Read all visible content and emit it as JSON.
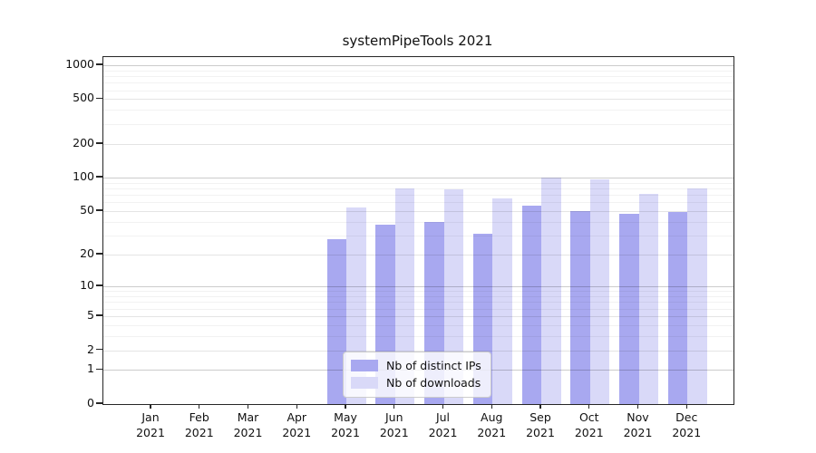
{
  "chart_data": {
    "type": "bar",
    "title": "systemPipeTools 2021",
    "months": [
      "Jan",
      "Feb",
      "Mar",
      "Apr",
      "May",
      "Jun",
      "Jul",
      "Aug",
      "Sep",
      "Oct",
      "Nov",
      "Dec"
    ],
    "year": "2021",
    "series": [
      {
        "name": "Nb of distinct IPs",
        "color": "#a8a8f0",
        "values": [
          null,
          null,
          null,
          null,
          28,
          38,
          40,
          31,
          56,
          50,
          47,
          49
        ]
      },
      {
        "name": "Nb of downloads",
        "color": "#d9d9f8",
        "values": [
          null,
          null,
          null,
          null,
          54,
          80,
          78,
          65,
          100,
          96,
          72,
          80
        ]
      }
    ],
    "yticks": [
      0,
      1,
      2,
      5,
      10,
      20,
      50,
      100,
      200,
      500,
      1000
    ],
    "ylim": [
      0,
      1180
    ],
    "yscale": "log1p",
    "xlabel": "",
    "ylabel": "",
    "grid": "on",
    "legend_position": "lower center"
  }
}
